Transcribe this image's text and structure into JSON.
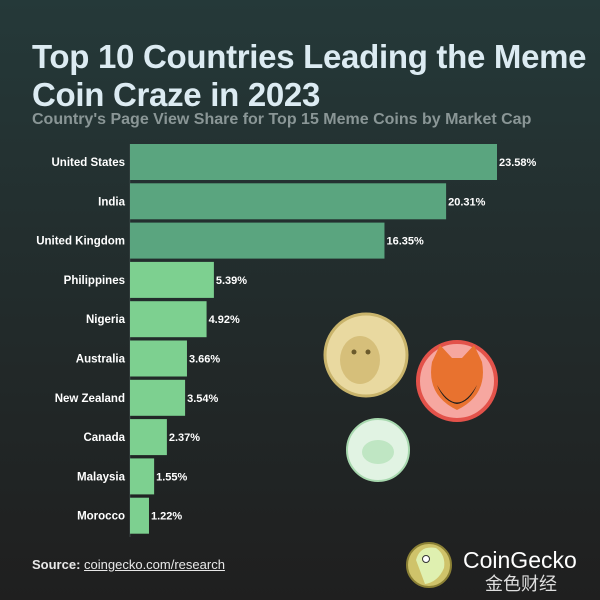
{
  "chart_data": {
    "type": "bar",
    "orientation": "horizontal",
    "title": "Top 10 Countries Leading the Meme Coin Craze in 2023",
    "subtitle": "Country's Page View Share for Top 15 Meme Coins by Market Cap",
    "categories": [
      "United States",
      "India",
      "United Kingdom",
      "Philippines",
      "Nigeria",
      "Australia",
      "New Zealand",
      "Canada",
      "Malaysia",
      "Morocco"
    ],
    "values": [
      23.58,
      20.31,
      16.35,
      5.39,
      4.92,
      3.66,
      3.54,
      2.37,
      1.55,
      1.22
    ],
    "labels": [
      "23.58%",
      "20.31%",
      "16.35%",
      "5.39%",
      "4.92%",
      "3.66%",
      "3.54%",
      "2.37%",
      "1.55%",
      "1.22%"
    ],
    "unit": "%",
    "grid": false,
    "colors": {
      "top3": "#5aa57f",
      "rest": "#7dd090"
    }
  },
  "footer": {
    "source_label": "Source:",
    "source_link": "coingecko.com/research",
    "brand": "CoinGecko",
    "watermark": "金色财经"
  },
  "decorations": [
    "doge-coin-icon",
    "shiba-inu-coin-icon",
    "pepe-coin-icon",
    "coingecko-logo-icon"
  ]
}
